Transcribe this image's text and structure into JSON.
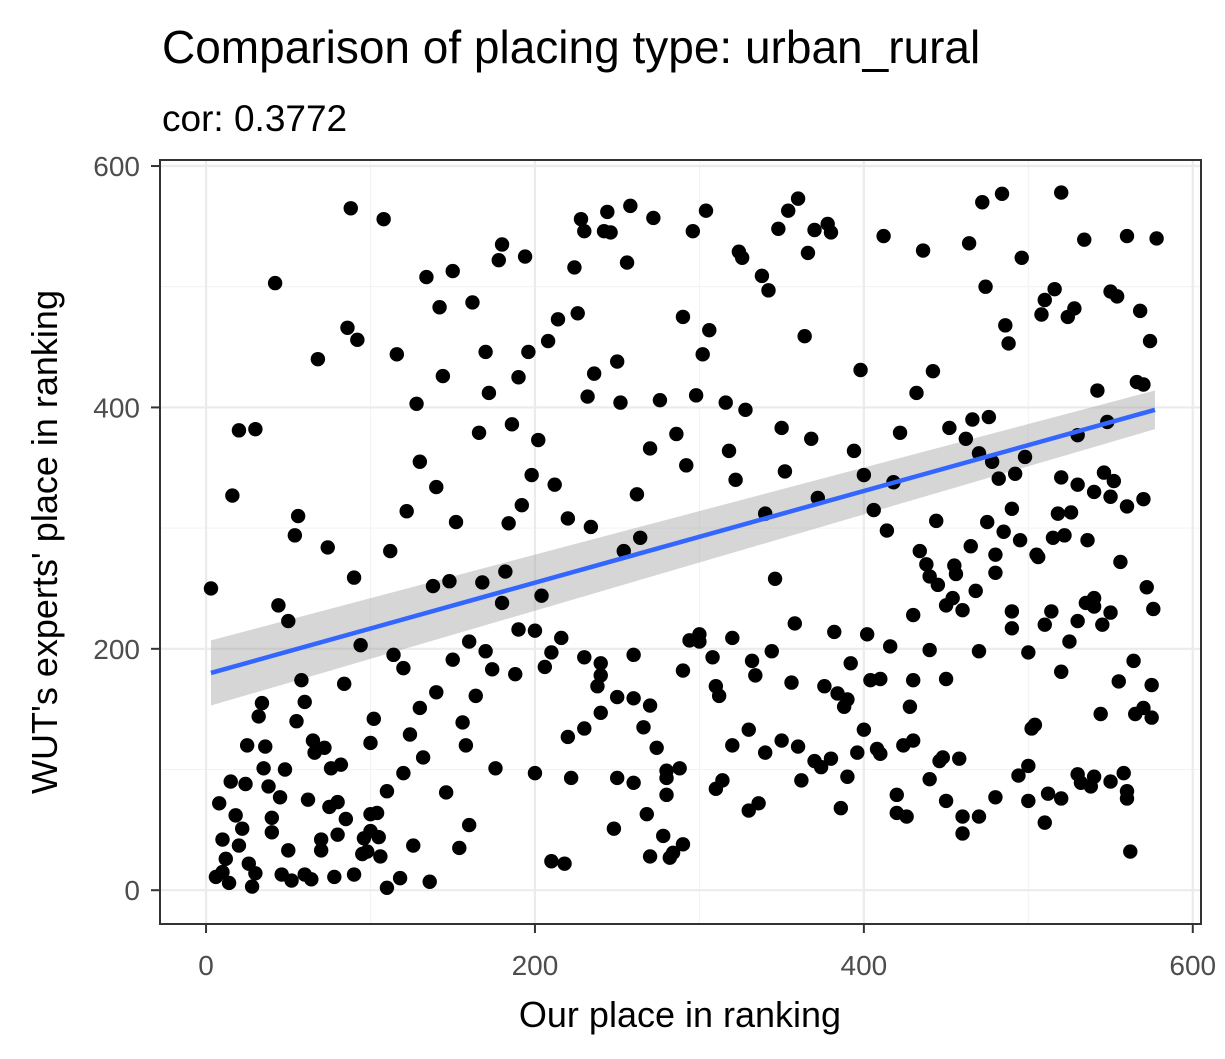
{
  "chart_data": {
    "type": "scatter",
    "title": "Comparison of placing type: urban_rural",
    "subtitle": "cor: 0.3772",
    "xlabel": "Our place in ranking",
    "ylabel": "WUT's experts' place in ranking",
    "xlim": [
      -28,
      605
    ],
    "ylim": [
      -28,
      605
    ],
    "xticks": [
      0,
      200,
      400,
      600
    ],
    "yticks": [
      0,
      200,
      400,
      600
    ],
    "xtick_labels": [
      "0",
      "200",
      "400",
      "600"
    ],
    "ytick_labels": [
      "0",
      "200",
      "400",
      "600"
    ],
    "grid": true,
    "point_color": "#000000",
    "trend": {
      "method": "linear",
      "color": "#3366ff",
      "band_color": "#999999",
      "x": [
        3,
        577
      ],
      "y": [
        180,
        398
      ],
      "band_low": [
        153,
        382
      ],
      "band_high": [
        207,
        414
      ]
    },
    "points": [
      [
        3,
        250
      ],
      [
        6,
        11
      ],
      [
        8,
        72
      ],
      [
        10,
        15
      ],
      [
        12,
        26
      ],
      [
        14,
        6
      ],
      [
        16,
        327
      ],
      [
        18,
        62
      ],
      [
        20,
        381
      ],
      [
        22,
        51
      ],
      [
        24,
        88
      ],
      [
        26,
        22
      ],
      [
        28,
        3
      ],
      [
        30,
        382
      ],
      [
        32,
        144
      ],
      [
        34,
        155
      ],
      [
        36,
        119
      ],
      [
        38,
        86
      ],
      [
        40,
        48
      ],
      [
        42,
        503
      ],
      [
        44,
        236
      ],
      [
        46,
        13
      ],
      [
        48,
        100
      ],
      [
        50,
        223
      ],
      [
        52,
        8
      ],
      [
        54,
        294
      ],
      [
        56,
        310
      ],
      [
        58,
        174
      ],
      [
        60,
        156
      ],
      [
        62,
        75
      ],
      [
        64,
        9
      ],
      [
        66,
        114
      ],
      [
        68,
        440
      ],
      [
        70,
        42
      ],
      [
        72,
        118
      ],
      [
        74,
        284
      ],
      [
        76,
        101
      ],
      [
        78,
        11
      ],
      [
        80,
        73
      ],
      [
        82,
        104
      ],
      [
        84,
        171
      ],
      [
        86,
        466
      ],
      [
        88,
        565
      ],
      [
        90,
        259
      ],
      [
        92,
        456
      ],
      [
        94,
        203
      ],
      [
        96,
        43
      ],
      [
        98,
        32
      ],
      [
        100,
        122
      ],
      [
        102,
        142
      ],
      [
        104,
        64
      ],
      [
        106,
        28
      ],
      [
        108,
        556
      ],
      [
        110,
        2
      ],
      [
        112,
        281
      ],
      [
        114,
        195
      ],
      [
        116,
        444
      ],
      [
        118,
        10
      ],
      [
        120,
        184
      ],
      [
        122,
        314
      ],
      [
        124,
        129
      ],
      [
        126,
        37
      ],
      [
        128,
        403
      ],
      [
        130,
        355
      ],
      [
        132,
        110
      ],
      [
        134,
        508
      ],
      [
        136,
        7
      ],
      [
        138,
        252
      ],
      [
        140,
        334
      ],
      [
        142,
        483
      ],
      [
        144,
        426
      ],
      [
        146,
        81
      ],
      [
        148,
        256
      ],
      [
        150,
        513
      ],
      [
        152,
        305
      ],
      [
        154,
        35
      ],
      [
        156,
        139
      ],
      [
        158,
        120
      ],
      [
        160,
        54
      ],
      [
        162,
        487
      ],
      [
        164,
        161
      ],
      [
        166,
        379
      ],
      [
        168,
        255
      ],
      [
        170,
        446
      ],
      [
        172,
        412
      ],
      [
        174,
        183
      ],
      [
        176,
        101
      ],
      [
        178,
        522
      ],
      [
        180,
        535
      ],
      [
        182,
        264
      ],
      [
        184,
        304
      ],
      [
        186,
        386
      ],
      [
        188,
        179
      ],
      [
        190,
        425
      ],
      [
        192,
        319
      ],
      [
        194,
        525
      ],
      [
        196,
        446
      ],
      [
        198,
        344
      ],
      [
        200,
        97
      ],
      [
        202,
        373
      ],
      [
        204,
        244
      ],
      [
        206,
        185
      ],
      [
        208,
        455
      ],
      [
        210,
        24
      ],
      [
        212,
        336
      ],
      [
        214,
        473
      ],
      [
        216,
        209
      ],
      [
        218,
        22
      ],
      [
        220,
        308
      ],
      [
        222,
        93
      ],
      [
        224,
        516
      ],
      [
        226,
        478
      ],
      [
        228,
        556
      ],
      [
        230,
        546
      ],
      [
        232,
        409
      ],
      [
        234,
        301
      ],
      [
        236,
        428
      ],
      [
        238,
        169
      ],
      [
        240,
        188
      ],
      [
        242,
        546
      ],
      [
        244,
        562
      ],
      [
        246,
        545
      ],
      [
        248,
        51
      ],
      [
        250,
        438
      ],
      [
        252,
        404
      ],
      [
        254,
        281
      ],
      [
        256,
        520
      ],
      [
        258,
        567
      ],
      [
        260,
        195
      ],
      [
        262,
        328
      ],
      [
        264,
        292
      ],
      [
        266,
        135
      ],
      [
        268,
        63
      ],
      [
        270,
        366
      ],
      [
        272,
        557
      ],
      [
        274,
        118
      ],
      [
        276,
        406
      ],
      [
        278,
        45
      ],
      [
        280,
        99
      ],
      [
        282,
        27
      ],
      [
        284,
        31
      ],
      [
        286,
        378
      ],
      [
        288,
        101
      ],
      [
        290,
        475
      ],
      [
        292,
        352
      ],
      [
        294,
        207
      ],
      [
        296,
        546
      ],
      [
        298,
        410
      ],
      [
        300,
        206
      ],
      [
        302,
        444
      ],
      [
        304,
        563
      ],
      [
        306,
        464
      ],
      [
        308,
        193
      ],
      [
        310,
        84
      ],
      [
        312,
        161
      ],
      [
        314,
        91
      ],
      [
        316,
        404
      ],
      [
        318,
        364
      ],
      [
        320,
        120
      ],
      [
        322,
        340
      ],
      [
        324,
        529
      ],
      [
        326,
        524
      ],
      [
        328,
        398
      ],
      [
        330,
        66
      ],
      [
        332,
        190
      ],
      [
        334,
        178
      ],
      [
        336,
        72
      ],
      [
        338,
        509
      ],
      [
        340,
        312
      ],
      [
        342,
        497
      ],
      [
        344,
        198
      ],
      [
        346,
        258
      ],
      [
        348,
        548
      ],
      [
        350,
        383
      ],
      [
        352,
        347
      ],
      [
        354,
        563
      ],
      [
        356,
        172
      ],
      [
        358,
        221
      ],
      [
        360,
        573
      ],
      [
        362,
        91
      ],
      [
        364,
        459
      ],
      [
        366,
        528
      ],
      [
        368,
        374
      ],
      [
        370,
        547
      ],
      [
        372,
        325
      ],
      [
        374,
        102
      ],
      [
        376,
        169
      ],
      [
        378,
        552
      ],
      [
        380,
        545
      ],
      [
        382,
        214
      ],
      [
        384,
        163
      ],
      [
        386,
        68
      ],
      [
        388,
        152
      ],
      [
        390,
        158
      ],
      [
        392,
        188
      ],
      [
        394,
        364
      ],
      [
        396,
        114
      ],
      [
        398,
        431
      ],
      [
        400,
        344
      ],
      [
        402,
        212
      ],
      [
        404,
        174
      ],
      [
        406,
        315
      ],
      [
        408,
        117
      ],
      [
        410,
        113
      ],
      [
        412,
        542
      ],
      [
        414,
        298
      ],
      [
        416,
        202
      ],
      [
        418,
        338
      ],
      [
        420,
        64
      ],
      [
        422,
        379
      ],
      [
        424,
        120
      ],
      [
        426,
        61
      ],
      [
        428,
        152
      ],
      [
        430,
        174
      ],
      [
        432,
        412
      ],
      [
        434,
        281
      ],
      [
        436,
        530
      ],
      [
        438,
        270
      ],
      [
        440,
        260
      ],
      [
        442,
        430
      ],
      [
        444,
        306
      ],
      [
        446,
        107
      ],
      [
        448,
        110
      ],
      [
        450,
        175
      ],
      [
        452,
        383
      ],
      [
        454,
        242
      ],
      [
        456,
        262
      ],
      [
        458,
        109
      ],
      [
        460,
        61
      ],
      [
        462,
        374
      ],
      [
        464,
        536
      ],
      [
        466,
        390
      ],
      [
        468,
        248
      ],
      [
        470,
        362
      ],
      [
        472,
        570
      ],
      [
        474,
        500
      ],
      [
        476,
        392
      ],
      [
        478,
        355
      ],
      [
        480,
        263
      ],
      [
        482,
        341
      ],
      [
        484,
        577
      ],
      [
        486,
        468
      ],
      [
        488,
        453
      ],
      [
        490,
        316
      ],
      [
        492,
        345
      ],
      [
        494,
        95
      ],
      [
        496,
        524
      ],
      [
        498,
        359
      ],
      [
        500,
        103
      ],
      [
        502,
        134
      ],
      [
        504,
        137
      ],
      [
        506,
        276
      ],
      [
        508,
        477
      ],
      [
        510,
        489
      ],
      [
        512,
        80
      ],
      [
        514,
        231
      ],
      [
        516,
        498
      ],
      [
        518,
        312
      ],
      [
        520,
        578
      ],
      [
        522,
        294
      ],
      [
        524,
        475
      ],
      [
        526,
        313
      ],
      [
        528,
        482
      ],
      [
        530,
        377
      ],
      [
        532,
        89
      ],
      [
        534,
        539
      ],
      [
        536,
        290
      ],
      [
        538,
        86
      ],
      [
        540,
        235
      ],
      [
        542,
        414
      ],
      [
        544,
        146
      ],
      [
        546,
        346
      ],
      [
        548,
        388
      ],
      [
        550,
        496
      ],
      [
        552,
        339
      ],
      [
        554,
        492
      ],
      [
        556,
        272
      ],
      [
        558,
        97
      ],
      [
        560,
        542
      ],
      [
        562,
        32
      ],
      [
        564,
        190
      ],
      [
        566,
        421
      ],
      [
        568,
        480
      ],
      [
        570,
        419
      ],
      [
        572,
        251
      ],
      [
        574,
        455
      ],
      [
        576,
        233
      ],
      [
        578,
        540
      ],
      [
        230,
        193
      ],
      [
        240,
        178
      ],
      [
        250,
        160
      ],
      [
        260,
        159
      ],
      [
        270,
        153
      ],
      [
        280,
        93
      ],
      [
        290,
        182
      ],
      [
        300,
        212
      ],
      [
        310,
        169
      ],
      [
        320,
        209
      ],
      [
        330,
        133
      ],
      [
        340,
        114
      ],
      [
        350,
        124
      ],
      [
        360,
        119
      ],
      [
        370,
        107
      ],
      [
        380,
        109
      ],
      [
        390,
        94
      ],
      [
        400,
        133
      ],
      [
        410,
        175
      ],
      [
        420,
        79
      ],
      [
        430,
        124
      ],
      [
        440,
        92
      ],
      [
        450,
        74
      ],
      [
        460,
        47
      ],
      [
        470,
        61
      ],
      [
        480,
        77
      ],
      [
        490,
        231
      ],
      [
        500,
        74
      ],
      [
        510,
        56
      ],
      [
        520,
        76
      ],
      [
        530,
        96
      ],
      [
        540,
        94
      ],
      [
        550,
        90
      ],
      [
        560,
        82
      ],
      [
        570,
        151
      ],
      [
        575,
        143
      ],
      [
        560,
        76
      ],
      [
        550,
        230
      ],
      [
        540,
        242
      ],
      [
        530,
        223
      ],
      [
        520,
        181
      ],
      [
        510,
        220
      ],
      [
        500,
        197
      ],
      [
        490,
        217
      ],
      [
        480,
        278
      ],
      [
        470,
        198
      ],
      [
        460,
        232
      ],
      [
        450,
        236
      ],
      [
        440,
        199
      ],
      [
        430,
        228
      ],
      [
        520,
        342
      ],
      [
        530,
        336
      ],
      [
        540,
        330
      ],
      [
        550,
        326
      ],
      [
        560,
        318
      ],
      [
        570,
        324
      ],
      [
        575,
        170
      ],
      [
        565,
        146
      ],
      [
        555,
        173
      ],
      [
        545,
        220
      ],
      [
        535,
        238
      ],
      [
        525,
        206
      ],
      [
        515,
        292
      ],
      [
        505,
        278
      ],
      [
        495,
        290
      ],
      [
        485,
        297
      ],
      [
        475,
        305
      ],
      [
        465,
        285
      ],
      [
        455,
        269
      ],
      [
        445,
        253
      ],
      [
        100,
        63
      ],
      [
        110,
        82
      ],
      [
        120,
        97
      ],
      [
        130,
        151
      ],
      [
        140,
        164
      ],
      [
        150,
        191
      ],
      [
        160,
        206
      ],
      [
        170,
        198
      ],
      [
        180,
        238
      ],
      [
        190,
        216
      ],
      [
        200,
        215
      ],
      [
        210,
        197
      ],
      [
        220,
        127
      ],
      [
        230,
        134
      ],
      [
        240,
        147
      ],
      [
        250,
        93
      ],
      [
        260,
        89
      ],
      [
        270,
        28
      ],
      [
        280,
        79
      ],
      [
        290,
        38
      ],
      [
        10,
        42
      ],
      [
        20,
        37
      ],
      [
        30,
        14
      ],
      [
        40,
        60
      ],
      [
        50,
        33
      ],
      [
        60,
        13
      ],
      [
        70,
        33
      ],
      [
        80,
        46
      ],
      [
        90,
        13
      ],
      [
        100,
        49
      ],
      [
        15,
        90
      ],
      [
        25,
        120
      ],
      [
        35,
        101
      ],
      [
        45,
        77
      ],
      [
        55,
        140
      ],
      [
        65,
        124
      ],
      [
        75,
        69
      ],
      [
        85,
        59
      ],
      [
        95,
        30
      ],
      [
        105,
        44
      ]
    ]
  }
}
